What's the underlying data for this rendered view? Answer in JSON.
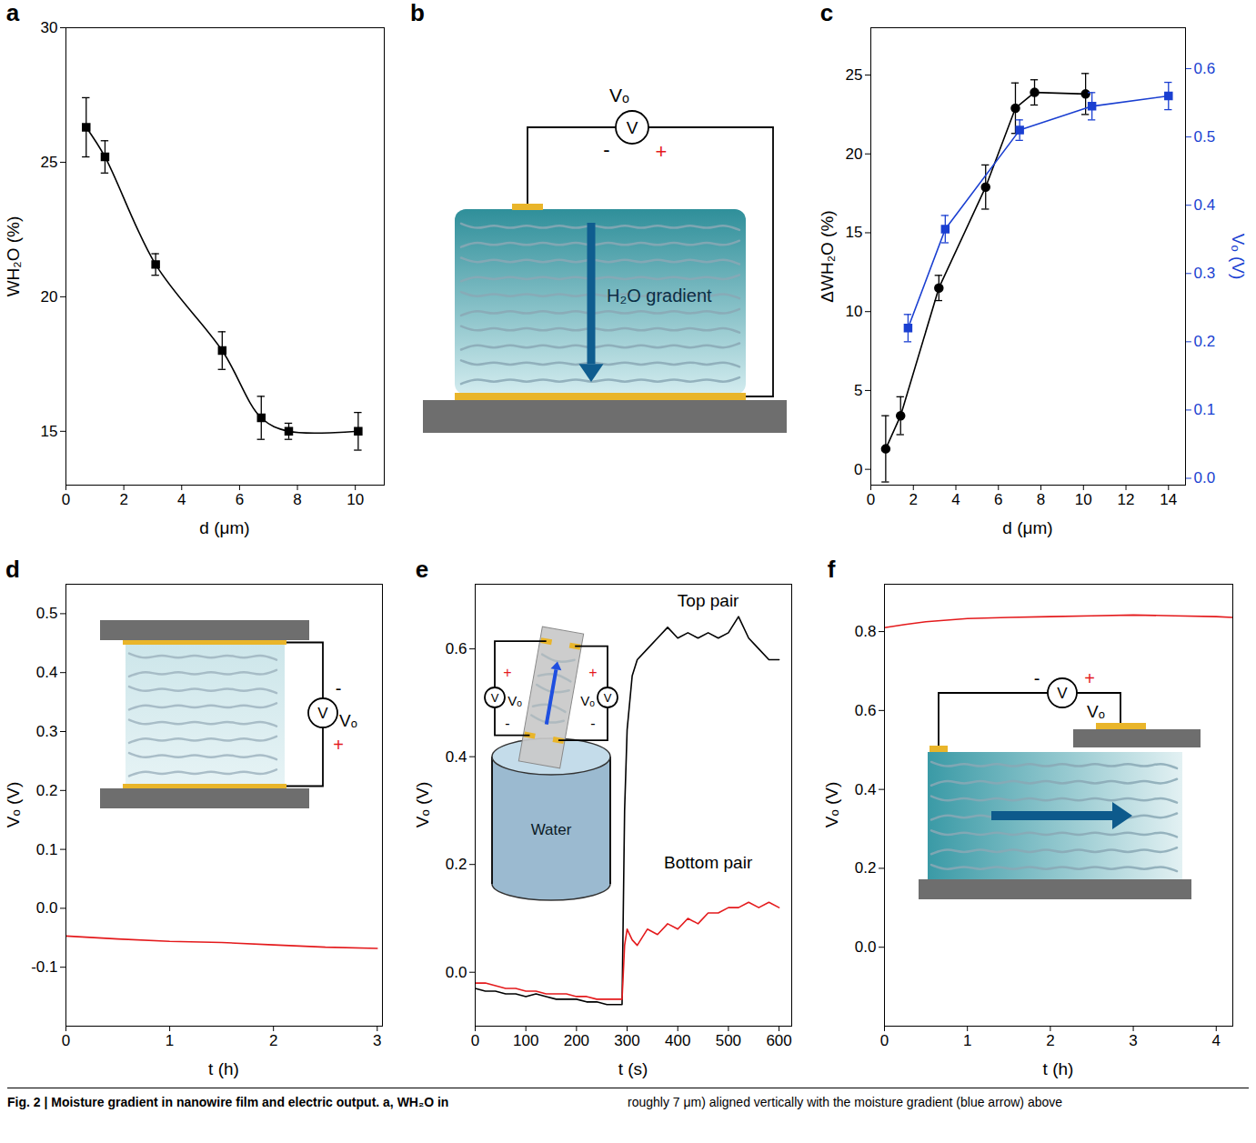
{
  "chart_data": [
    {
      "panel": "a",
      "type": "line",
      "x_label": "d (μm)",
      "y_label": "WH₂O (%)",
      "xlim": [
        0,
        11
      ],
      "xticks": [
        0,
        2,
        4,
        6,
        8,
        10
      ],
      "ylim": [
        13,
        30
      ],
      "yticks": [
        15,
        20,
        25,
        30
      ],
      "series": [
        {
          "color": "#000000",
          "marker": "square",
          "line_style": "smooth",
          "x": [
            0.7,
            1.35,
            3.1,
            5.4,
            6.75,
            7.7,
            10.1
          ],
          "values": [
            26.3,
            25.2,
            21.2,
            18.0,
            15.5,
            15.0,
            15.0
          ],
          "errors": [
            1.1,
            0.6,
            0.4,
            0.7,
            0.8,
            0.3,
            0.7
          ]
        }
      ]
    },
    {
      "panel": "c",
      "type": "line",
      "x_label": "d (μm)",
      "y_label": "ΔWH₂O (%)",
      "y2_label": "Vₒ (V)",
      "xlim": [
        0,
        14.8
      ],
      "xticks": [
        0,
        2,
        4,
        6,
        8,
        10,
        12,
        14
      ],
      "ylim": [
        -1,
        28
      ],
      "yticks": [
        0,
        5,
        10,
        15,
        20,
        25
      ],
      "y2lim": [
        -0.01,
        0.66
      ],
      "y2ticks": [
        {
          "value": 0,
          "label": "0.0"
        },
        0.1,
        0.2,
        0.3,
        0.4,
        0.5,
        0.6
      ],
      "series": [
        {
          "color": "#000000",
          "marker": "circle",
          "line_style": "solid",
          "x": [
            0.7,
            1.4,
            3.2,
            5.4,
            6.8,
            7.7,
            10.1
          ],
          "values": [
            1.3,
            3.4,
            11.5,
            17.9,
            22.9,
            23.9,
            23.8
          ],
          "errors": [
            2.1,
            1.2,
            0.8,
            1.4,
            1.6,
            0.8,
            1.3
          ]
        },
        {
          "color": "#1a3fd1",
          "marker": "square",
          "line_style": "solid",
          "axis": "y2",
          "x": [
            1.75,
            3.5,
            7.0,
            10.4,
            14.0
          ],
          "values": [
            0.22,
            0.365,
            0.51,
            0.545,
            0.56
          ],
          "errors": [
            0.02,
            0.02,
            0.015,
            0.02,
            0.02
          ]
        }
      ]
    },
    {
      "panel": "d",
      "type": "line",
      "x_label": "t (h)",
      "y_label": "Vₒ (V)",
      "xlim": [
        0,
        3.05
      ],
      "xticks": [
        0,
        1,
        2,
        3
      ],
      "ylim": [
        -0.2,
        0.55
      ],
      "yticks": [
        -0.1,
        {
          "value": 0,
          "label": "0.0"
        },
        0.1,
        0.2,
        0.3,
        0.4,
        0.5
      ],
      "x": [
        0,
        0.5,
        1,
        1.5,
        2,
        2.5,
        3
      ],
      "series": [
        {
          "color": "#e41a1c",
          "line_style": "solid",
          "values": [
            -0.047,
            -0.052,
            -0.056,
            -0.058,
            -0.062,
            -0.066,
            -0.068
          ]
        }
      ],
      "inset": {
        "meter": "V",
        "meter_label": "Vₒ",
        "minus": "-",
        "plus": "+"
      }
    },
    {
      "panel": "e",
      "type": "line",
      "x_label": "t (s)",
      "y_label": "Vₒ (V)",
      "xlim": [
        0,
        625
      ],
      "xticks": [
        0,
        100,
        200,
        300,
        400,
        500,
        600
      ],
      "ylim": [
        -0.1,
        0.72
      ],
      "yticks": [
        {
          "value": 0,
          "label": "0.0"
        },
        0.2,
        0.4,
        0.6
      ],
      "x": [
        0,
        20,
        40,
        60,
        80,
        100,
        120,
        140,
        160,
        180,
        200,
        220,
        240,
        260,
        280,
        290,
        295,
        300,
        310,
        320,
        340,
        360,
        380,
        400,
        420,
        440,
        460,
        480,
        500,
        520,
        540,
        560,
        580,
        600
      ],
      "series": [
        {
          "name": "Top pair",
          "color": "#000000",
          "line_style": "solid",
          "values": [
            -0.03,
            -0.035,
            -0.035,
            -0.04,
            -0.04,
            -0.045,
            -0.04,
            -0.045,
            -0.05,
            -0.05,
            -0.05,
            -0.055,
            -0.055,
            -0.06,
            -0.06,
            -0.06,
            0.3,
            0.45,
            0.55,
            0.58,
            0.6,
            0.62,
            0.64,
            0.62,
            0.63,
            0.62,
            0.63,
            0.62,
            0.63,
            0.66,
            0.62,
            0.6,
            0.58,
            0.58
          ]
        },
        {
          "name": "Bottom pair",
          "color": "#e41a1c",
          "line_style": "solid",
          "values": [
            -0.02,
            -0.02,
            -0.025,
            -0.03,
            -0.03,
            -0.035,
            -0.035,
            -0.04,
            -0.04,
            -0.04,
            -0.045,
            -0.045,
            -0.05,
            -0.05,
            -0.05,
            -0.05,
            0.05,
            0.08,
            0.06,
            0.05,
            0.08,
            0.07,
            0.09,
            0.08,
            0.1,
            0.09,
            0.11,
            0.11,
            0.12,
            0.12,
            0.13,
            0.12,
            0.13,
            0.12
          ]
        }
      ],
      "inset": {
        "meter": "V",
        "meter_label": "Vₒ",
        "minus": "-",
        "plus": "+",
        "liquid": "Water"
      }
    },
    {
      "panel": "f",
      "type": "line",
      "x_label": "t (h)",
      "y_label": "Vₒ (V)",
      "xlim": [
        0,
        4.2
      ],
      "xticks": [
        0,
        1,
        2,
        3,
        4
      ],
      "ylim": [
        -0.2,
        0.92
      ],
      "yticks": [
        {
          "value": 0,
          "label": "0.0"
        },
        0.2,
        0.4,
        0.6,
        0.8
      ],
      "x": [
        0,
        0.25,
        0.5,
        1,
        1.5,
        2,
        2.5,
        3,
        3.5,
        4,
        4.2
      ],
      "series": [
        {
          "color": "#e41a1c",
          "line_style": "solid",
          "values": [
            0.81,
            0.818,
            0.825,
            0.833,
            0.836,
            0.838,
            0.84,
            0.842,
            0.84,
            0.838,
            0.836
          ]
        }
      ],
      "inset": {
        "meter": "V",
        "meter_label": "Vₒ",
        "minus": "-",
        "plus": "+"
      }
    }
  ],
  "diagram": {
    "panel": "b",
    "meter": "V",
    "meter_label": "Vₒ",
    "minus": "-",
    "plus": "+",
    "arrow_label": "H₂O gradient"
  },
  "caption": [
    "Fig. 2 | Moisture gradient in nanowire film and electric output. a, WH₂O in",
    "roughly 7 μm) aligned vertically with the moisture gradient (blue arrow) above"
  ]
}
